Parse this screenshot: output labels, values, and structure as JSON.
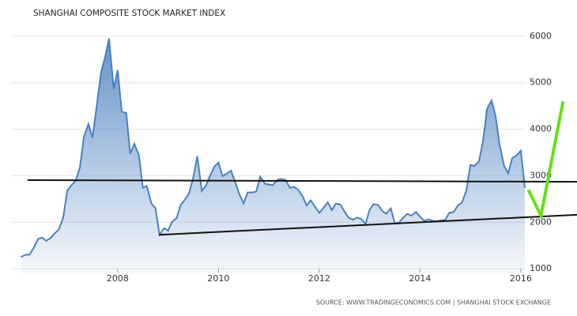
{
  "chart_data": {
    "type": "area",
    "title": "SHANGHAI COMPOSITE STOCK MARKET INDEX",
    "source": "SOURCE: WWW.TRADINGECONOMICS.COM | SHANGHAI STOCK EXCHANGE",
    "x": [
      2006.08,
      2006.17,
      2006.25,
      2006.33,
      2006.42,
      2006.5,
      2006.58,
      2006.67,
      2006.75,
      2006.83,
      2006.92,
      2007.0,
      2007.08,
      2007.17,
      2007.25,
      2007.33,
      2007.42,
      2007.5,
      2007.58,
      2007.67,
      2007.75,
      2007.83,
      2007.92,
      2008.0,
      2008.08,
      2008.17,
      2008.25,
      2008.33,
      2008.42,
      2008.5,
      2008.58,
      2008.67,
      2008.75,
      2008.83,
      2008.92,
      2009.0,
      2009.08,
      2009.17,
      2009.25,
      2009.33,
      2009.42,
      2009.5,
      2009.58,
      2009.67,
      2009.75,
      2009.83,
      2009.92,
      2010.0,
      2010.08,
      2010.17,
      2010.25,
      2010.33,
      2010.42,
      2010.5,
      2010.58,
      2010.67,
      2010.75,
      2010.83,
      2010.92,
      2011.0,
      2011.08,
      2011.17,
      2011.25,
      2011.33,
      2011.42,
      2011.5,
      2011.58,
      2011.67,
      2011.75,
      2011.83,
      2011.92,
      2012.0,
      2012.08,
      2012.17,
      2012.25,
      2012.33,
      2012.42,
      2012.5,
      2012.58,
      2012.67,
      2012.75,
      2012.83,
      2012.92,
      2013.0,
      2013.08,
      2013.17,
      2013.25,
      2013.33,
      2013.42,
      2013.5,
      2013.58,
      2013.67,
      2013.75,
      2013.83,
      2013.92,
      2014.0,
      2014.08,
      2014.17,
      2014.25,
      2014.33,
      2014.42,
      2014.5,
      2014.58,
      2014.67,
      2014.75,
      2014.83,
      2014.92,
      2015.0,
      2015.08,
      2015.17,
      2015.25,
      2015.33,
      2015.42,
      2015.5,
      2015.58,
      2015.67,
      2015.75,
      2015.83,
      2015.92,
      2016.0,
      2016.08
    ],
    "series": [
      {
        "color": "#4a80bf",
        "values": [
          1250,
          1300,
          1300,
          1440,
          1640,
          1670,
          1600,
          1660,
          1760,
          1840,
          2100,
          2680,
          2790,
          2900,
          3180,
          3840,
          4110,
          3820,
          4470,
          5220,
          5550,
          5950,
          4870,
          5270,
          4380,
          4350,
          3470,
          3690,
          3440,
          2740,
          2780,
          2400,
          2300,
          1730,
          1870,
          1820,
          2010,
          2090,
          2370,
          2480,
          2630,
          2960,
          3420,
          2670,
          2780,
          2990,
          3200,
          3280,
          2990,
          3050,
          3110,
          2870,
          2590,
          2400,
          2640,
          2640,
          2660,
          2980,
          2830,
          2810,
          2800,
          2910,
          2930,
          2910,
          2740,
          2760,
          2700,
          2560,
          2360,
          2470,
          2330,
          2200,
          2300,
          2430,
          2260,
          2400,
          2380,
          2230,
          2100,
          2050,
          2100,
          2070,
          1960,
          2270,
          2390,
          2370,
          2240,
          2180,
          2300,
          1980,
          1990,
          2100,
          2180,
          2140,
          2220,
          2120,
          2030,
          2060,
          2030,
          2020,
          2040,
          2050,
          2200,
          2220,
          2360,
          2420,
          2680,
          3230,
          3210,
          3310,
          3750,
          4440,
          4620,
          4280,
          3660,
          3210,
          3050,
          3380,
          3440,
          3540,
          2740
        ]
      }
    ],
    "annotation_lines": [
      {
        "color": "#111111",
        "x": [
          2006.21,
          2017.12
        ],
        "y": [
          2905,
          2870
        ]
      },
      {
        "color": "#111111",
        "x": [
          2008.82,
          2017.12
        ],
        "y": [
          1730,
          2160
        ]
      },
      {
        "color": "#66e01a",
        "x": [
          2016.15,
          2016.4,
          2016.84
        ],
        "y": [
          2700,
          2140,
          4600
        ]
      }
    ],
    "xlim": [
      2005.9,
      2017.1
    ],
    "xticks": [
      2008,
      2010,
      2012,
      2014,
      2016
    ],
    "ylim": [
      900,
      6100
    ],
    "yticks": [
      1000,
      2000,
      3000,
      4000,
      5000,
      6000
    ],
    "grid": true
  }
}
